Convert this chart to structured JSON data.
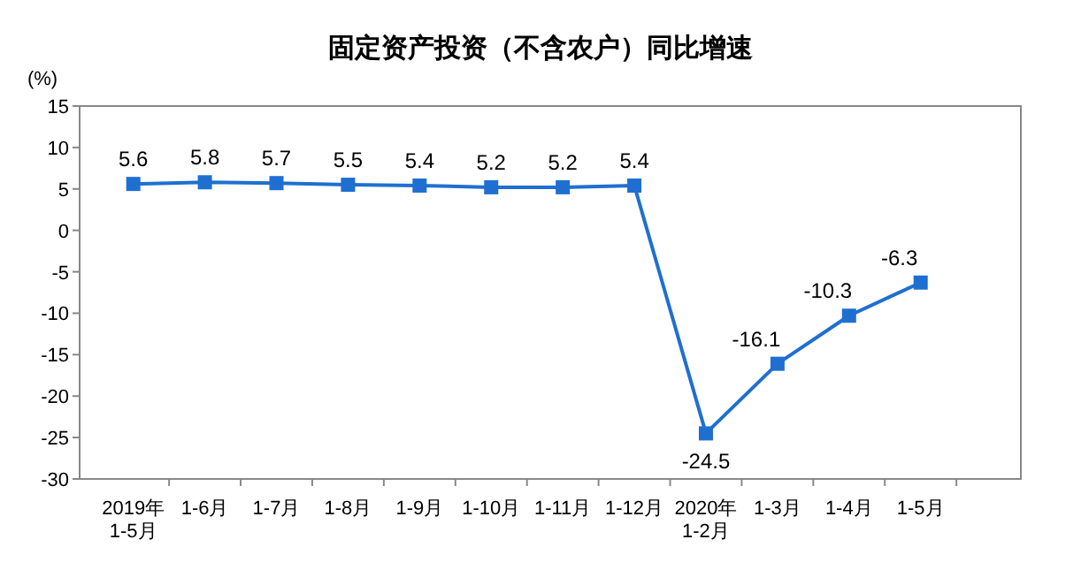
{
  "chart_data": {
    "type": "line",
    "title": "固定资产投资（不含农户）同比增速",
    "ylabel": "(%)",
    "categories": [
      "2019年\n1-5月",
      "1-6月",
      "1-7月",
      "1-8月",
      "1-9月",
      "1-10月",
      "1-11月",
      "1-12月",
      "2020年\n1-2月",
      "1-3月",
      "1-4月",
      "1-5月"
    ],
    "series": [
      {
        "color": "#1f6fd1",
        "values": [
          5.6,
          5.8,
          5.7,
          5.5,
          5.4,
          5.2,
          5.2,
          5.4,
          -24.5,
          -16.1,
          -10.3,
          -6.3
        ]
      }
    ],
    "ylim": [
      -30,
      15
    ],
    "yticks": [
      15,
      10,
      5,
      0,
      -5,
      -10,
      -15,
      -20,
      -25,
      -30
    ],
    "marker": "square",
    "data_labels": true,
    "grid": false
  }
}
